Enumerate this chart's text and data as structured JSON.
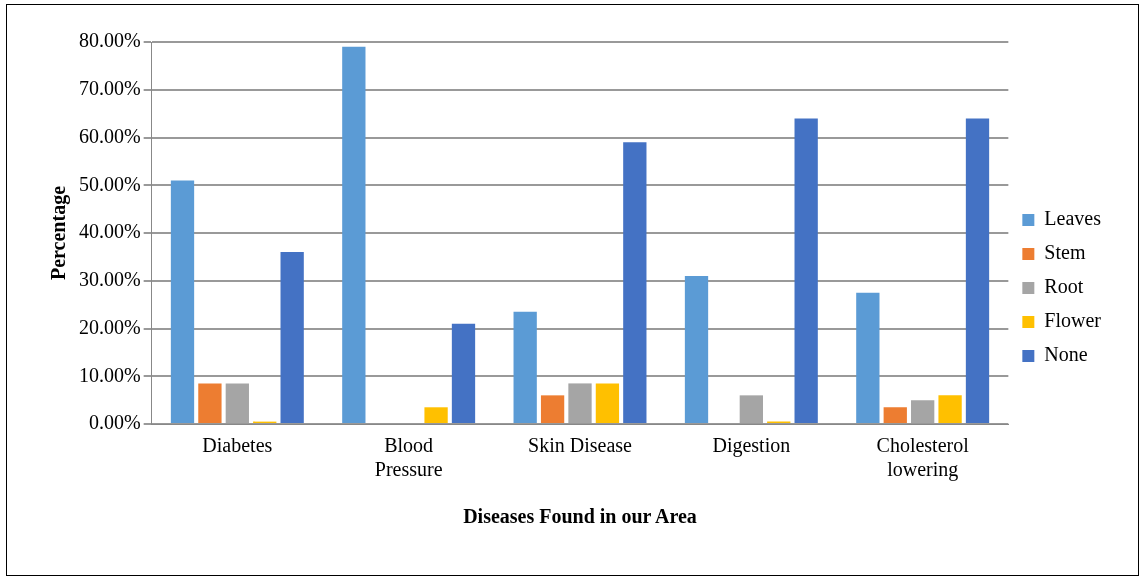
{
  "chart_data": {
    "type": "bar",
    "xlabel": "Diseases Found in our Area",
    "ylabel": "Percentage",
    "categories": [
      "Diabetes",
      "Blood Pressure",
      "Skin Disease",
      "Digestion",
      "Cholesterol lowering"
    ],
    "series": [
      {
        "name": "Leaves",
        "color": "#5b9bd5",
        "values": [
          51,
          79,
          23.5,
          31,
          27.5
        ]
      },
      {
        "name": "Stem",
        "color": "#ed7d31",
        "values": [
          8.5,
          0,
          6,
          0,
          3.5
        ]
      },
      {
        "name": "Root",
        "color": "#a5a5a5",
        "values": [
          8.5,
          0,
          8.5,
          6,
          5
        ]
      },
      {
        "name": "Flower",
        "color": "#ffc000",
        "values": [
          0.5,
          3.5,
          8.5,
          0.5,
          6
        ]
      },
      {
        "name": "None",
        "color": "#4472c4",
        "values": [
          36,
          21,
          59,
          64,
          64
        ]
      }
    ],
    "ylim": [
      0,
      80
    ],
    "yticks": [
      {
        "value": 0,
        "label": "0.00%"
      },
      {
        "value": 10,
        "label": "10.00%"
      },
      {
        "value": 20,
        "label": "20.00%"
      },
      {
        "value": 30,
        "label": "30.00%"
      },
      {
        "value": 40,
        "label": "40.00%"
      },
      {
        "value": 50,
        "label": "50.00%"
      },
      {
        "value": 60,
        "label": "60.00%"
      },
      {
        "value": 70,
        "label": "70.00%"
      },
      {
        "value": 80,
        "label": "80.00%"
      }
    ],
    "grid": "y",
    "legend": "right"
  }
}
